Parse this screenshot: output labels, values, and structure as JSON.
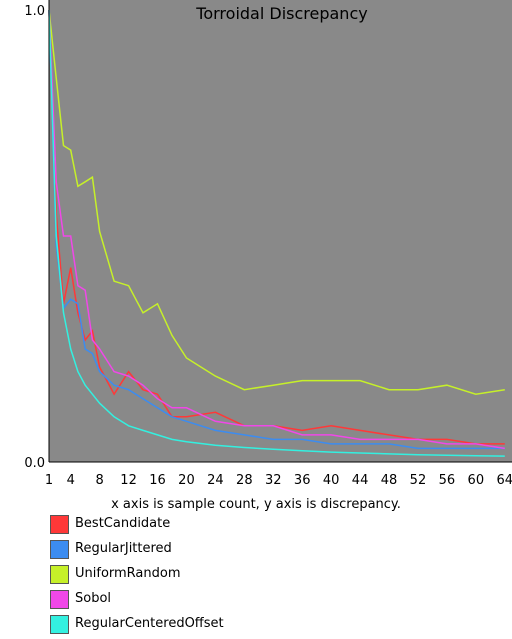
{
  "chart_data": {
    "type": "line",
    "title": "Torroidal Discrepancy",
    "xlabel": "x axis is sample count, y axis is discrepancy.",
    "ylabel": "",
    "xlim": [
      1,
      65
    ],
    "ylim": [
      0,
      1
    ],
    "background": "#898989",
    "grid": false,
    "legend_placement": "bottom-left",
    "x_ticks": [
      1,
      4,
      8,
      12,
      16,
      20,
      24,
      28,
      32,
      36,
      40,
      44,
      48,
      52,
      56,
      60,
      64
    ],
    "y_ticks": [
      {
        "value": 0,
        "label": "0.0"
      },
      {
        "value": 1,
        "label": "1.0"
      }
    ],
    "x": [
      1,
      2,
      3,
      4,
      5,
      6,
      7,
      8,
      10,
      12,
      14,
      16,
      18,
      20,
      24,
      28,
      32,
      36,
      40,
      44,
      48,
      52,
      56,
      60,
      64
    ],
    "series": [
      {
        "name": "BestCandidate",
        "color": "#ff3838",
        "values": [
          1.0,
          0.55,
          0.35,
          0.43,
          0.33,
          0.27,
          0.29,
          0.21,
          0.15,
          0.2,
          0.16,
          0.15,
          0.1,
          0.1,
          0.11,
          0.08,
          0.08,
          0.07,
          0.08,
          0.07,
          0.06,
          0.05,
          0.05,
          0.04,
          0.04
        ]
      },
      {
        "name": "RegularJittered",
        "color": "#3c8cf0",
        "values": [
          1.0,
          0.48,
          0.34,
          0.36,
          0.35,
          0.25,
          0.24,
          0.2,
          0.17,
          0.16,
          0.14,
          0.12,
          0.1,
          0.09,
          0.07,
          0.06,
          0.05,
          0.05,
          0.04,
          0.04,
          0.04,
          0.03,
          0.03,
          0.03,
          0.03
        ]
      },
      {
        "name": "UniformRandom",
        "color": "#c6f029",
        "values": [
          1.0,
          0.85,
          0.7,
          0.69,
          0.61,
          0.62,
          0.63,
          0.51,
          0.4,
          0.39,
          0.33,
          0.35,
          0.28,
          0.23,
          0.19,
          0.16,
          0.17,
          0.18,
          0.18,
          0.18,
          0.16,
          0.16,
          0.17,
          0.15,
          0.16
        ]
      },
      {
        "name": "Sobol",
        "color": "#f048e8",
        "values": [
          1.0,
          0.62,
          0.5,
          0.5,
          0.39,
          0.38,
          0.27,
          0.25,
          0.2,
          0.19,
          0.17,
          0.14,
          0.12,
          0.12,
          0.09,
          0.08,
          0.08,
          0.06,
          0.06,
          0.05,
          0.05,
          0.05,
          0.04,
          0.04,
          0.03
        ]
      },
      {
        "name": "RegularCenteredOffset",
        "color": "#33f0e0",
        "values": [
          1.0,
          0.5,
          0.33,
          0.25,
          0.2,
          0.17,
          0.15,
          0.13,
          0.1,
          0.08,
          0.07,
          0.06,
          0.05,
          0.045,
          0.037,
          0.032,
          0.028,
          0.025,
          0.022,
          0.02,
          0.018,
          0.016,
          0.015,
          0.014,
          0.013
        ]
      }
    ]
  }
}
